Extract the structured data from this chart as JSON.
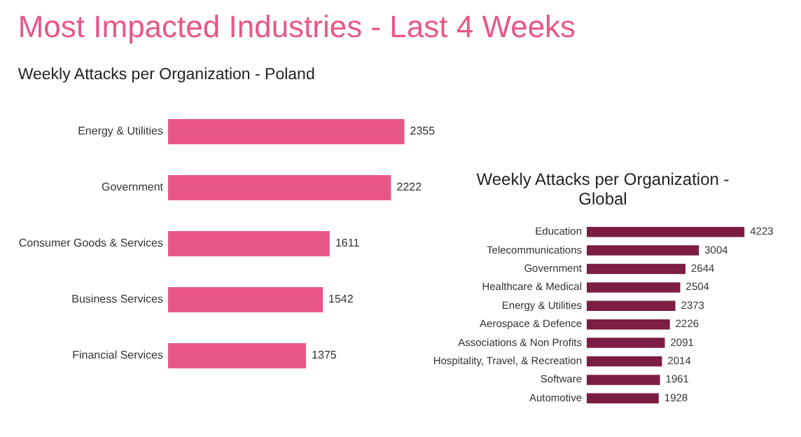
{
  "chart_data": [
    {
      "type": "bar",
      "orientation": "horizontal",
      "title": "Most Impacted Industries - Last 4 Weeks",
      "subtitle": "Weekly Attacks per Organization - Poland",
      "categories": [
        "Energy & Utilities",
        "Government",
        "Consumer Goods & Services",
        "Business Services",
        "Financial Services"
      ],
      "values": [
        2355,
        2222,
        1611,
        1542,
        1375
      ],
      "color": "#e8578a",
      "data_labels": true,
      "tick_labels": "y"
    },
    {
      "type": "bar",
      "orientation": "horizontal",
      "title": "Weekly Attacks per Organization - Global",
      "categories": [
        "Education",
        "Telecommunications",
        "Government",
        "Healthcare & Medical",
        "Energy & Utilities",
        "Aerospace & Defence",
        "Associations & Non Profits",
        "Hospitality, Travel, & Recreation",
        "Software",
        "Automotive"
      ],
      "values": [
        4223,
        3004,
        2644,
        2504,
        2373,
        2226,
        2091,
        2014,
        1961,
        1928
      ],
      "color": "#7d1d43",
      "data_labels": true,
      "tick_labels": "y"
    }
  ]
}
